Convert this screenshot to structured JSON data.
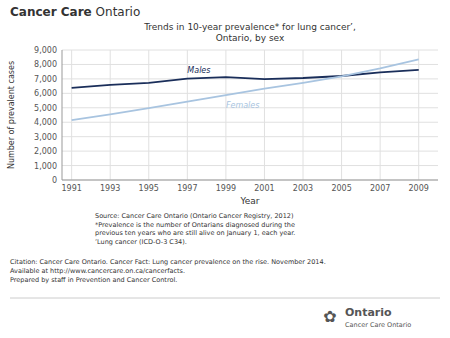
{
  "chart_data": {
    "type": "line",
    "title": "Trends in 10-year prevalence* for lung cancer’,\nOntario, by sex",
    "x_label": "Year",
    "y_label": "Number of prevalent cases",
    "x": [
      1991,
      1993,
      1995,
      1997,
      1999,
      2001,
      2003,
      2005,
      2007,
      2009
    ],
    "series": [
      {
        "name": "Males",
        "color": "#1a2e5a",
        "values": [
          6380,
          6580,
          6720,
          7020,
          7120,
          6980,
          7060,
          7200,
          7450,
          7620
        ]
      },
      {
        "name": "Females",
        "color": "#a8c4e0",
        "values": [
          4150,
          4550,
          4980,
          5420,
          5880,
          6320,
          6720,
          7180,
          7720,
          8350
        ]
      }
    ],
    "xlim": [
      1990.5,
      2010.0
    ],
    "xticks": [
      1991,
      1993,
      1995,
      1997,
      1999,
      2001,
      2003,
      2005,
      2007,
      2009
    ],
    "ylim": [
      0,
      9000
    ],
    "yticks": [
      0,
      {
        "value": 1000,
        "label": "1,000"
      },
      {
        "value": 2000,
        "label": "2,000"
      },
      {
        "value": 3000,
        "label": "3,000"
      },
      {
        "value": 4000,
        "label": "4,000"
      },
      {
        "value": 5000,
        "label": "5,000"
      },
      {
        "value": 6000,
        "label": "6,000"
      },
      {
        "value": 7000,
        "label": "7,000"
      },
      {
        "value": 8000,
        "label": "8,000"
      },
      {
        "value": 9000,
        "label": "9,000"
      }
    ],
    "grid": true,
    "annotations": [
      "Cancer Care",
      " Ontario",
      "Source: Cancer Care Ontario (Ontario Cancer Registry, 2012)\n*Prevalence is the number of Ontarians diagnosed during the\nprevious ten years who are still alive on January 1, each year.\n’Lung cancer (ICD-O-3 C34).",
      "Citation: Cancer Care Ontario. Cancer Fact: Lung cancer prevalence on the rise. November 2014.",
      "Available at http://www.cancercare.on.ca/cancerfacts.",
      "Prepared by staff in Prevention and Cancer Control.",
      "✿",
      "Ontario",
      "Cancer Care Ontario"
    ]
  }
}
